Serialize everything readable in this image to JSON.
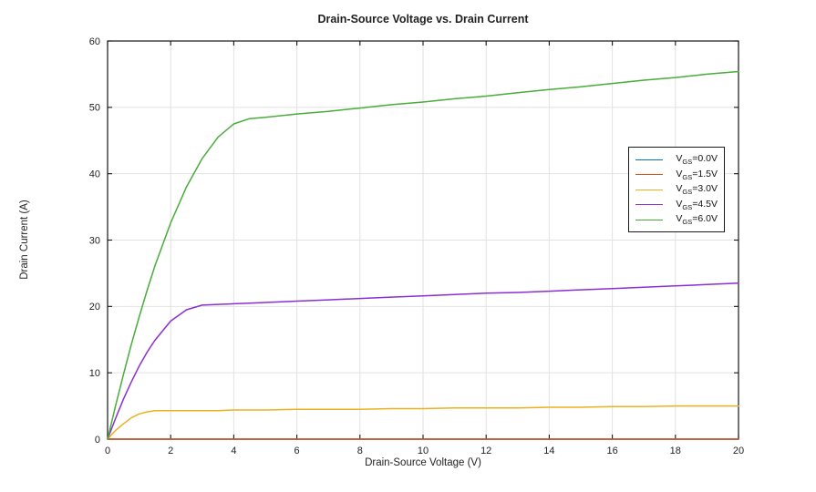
{
  "figure": {
    "title": "Drain-Source Voltage vs. Drain Current",
    "xlabel": "Drain-Source Voltage (V)",
    "ylabel": "Drain Current (A)",
    "background_color": "#ffffff",
    "axis_color": "#161616",
    "grid_color": "#e2e2e2",
    "text_color": "#1f1f1f"
  },
  "chart_data": {
    "type": "line",
    "title": "Drain-Source Voltage vs. Drain Current",
    "xlabel": "Drain-Source Voltage (V)",
    "ylabel": "Drain Current (A)",
    "xlim": [
      0,
      20
    ],
    "ylim": [
      0,
      60
    ],
    "xticks": [
      0,
      2,
      4,
      6,
      8,
      10,
      12,
      14,
      16,
      18,
      20
    ],
    "yticks": [
      0,
      10,
      20,
      30,
      40,
      50,
      60
    ],
    "grid": true,
    "legend_position": "inside-right-upper-middle",
    "x": [
      0,
      0.25,
      0.5,
      0.75,
      1,
      1.25,
      1.5,
      2,
      2.5,
      3,
      3.5,
      4,
      4.5,
      5,
      6,
      7,
      8,
      9,
      10,
      11,
      12,
      13,
      14,
      15,
      16,
      17,
      18,
      19,
      20
    ],
    "series": [
      {
        "name": "VGS=0.0V",
        "label_base": "V",
        "label_sub": "GS",
        "label_rest": "=0.0V",
        "color": "#0072BD",
        "values": [
          0,
          0,
          0,
          0,
          0,
          0,
          0,
          0,
          0,
          0,
          0,
          0,
          0,
          0,
          0,
          0,
          0,
          0,
          0,
          0,
          0,
          0,
          0,
          0,
          0,
          0,
          0,
          0,
          0
        ]
      },
      {
        "name": "VGS=1.5V",
        "label_base": "V",
        "label_sub": "GS",
        "label_rest": "=1.5V",
        "color": "#D95319",
        "values": [
          0,
          0,
          0,
          0,
          0,
          0,
          0,
          0,
          0,
          0,
          0,
          0,
          0,
          0,
          0,
          0,
          0,
          0,
          0,
          0,
          0,
          0,
          0,
          0,
          0,
          0,
          0,
          0,
          0
        ]
      },
      {
        "name": "VGS=3.0V",
        "label_base": "V",
        "label_sub": "GS",
        "label_rest": "=3.0V",
        "color": "#EDB120",
        "values": [
          0,
          1.3,
          2.3,
          3.2,
          3.8,
          4.1,
          4.3,
          4.3,
          4.3,
          4.3,
          4.3,
          4.4,
          4.4,
          4.4,
          4.5,
          4.5,
          4.5,
          4.6,
          4.6,
          4.7,
          4.7,
          4.7,
          4.8,
          4.8,
          4.9,
          4.9,
          5.0,
          5.0,
          5.0
        ]
      },
      {
        "name": "VGS=4.5V",
        "label_base": "V",
        "label_sub": "GS",
        "label_rest": "=4.5V",
        "color": "#8B2FD1",
        "values": [
          0,
          3.1,
          6.0,
          8.6,
          11.0,
          13.1,
          14.9,
          17.8,
          19.5,
          20.2,
          20.3,
          20.4,
          20.5,
          20.6,
          20.8,
          21.0,
          21.2,
          21.4,
          21.6,
          21.8,
          22.0,
          22.1,
          22.3,
          22.5,
          22.7,
          22.9,
          23.1,
          23.3,
          23.5
        ]
      },
      {
        "name": "VGS=6.0V",
        "label_base": "V",
        "label_sub": "GS",
        "label_rest": "=6.0V",
        "color": "#48AD3A",
        "values": [
          0,
          5.0,
          9.7,
          14.2,
          18.4,
          22.4,
          26.1,
          32.6,
          38.0,
          42.3,
          45.5,
          47.5,
          48.3,
          48.5,
          49.0,
          49.4,
          49.9,
          50.4,
          50.8,
          51.3,
          51.7,
          52.2,
          52.7,
          53.1,
          53.6,
          54.1,
          54.5,
          55.0,
          55.4
        ]
      }
    ]
  }
}
